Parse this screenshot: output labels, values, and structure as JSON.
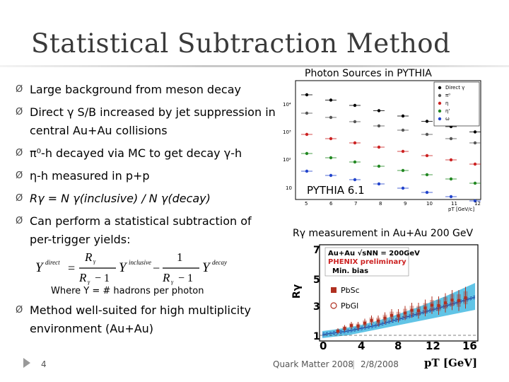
{
  "slide": {
    "title": "Statistical Subtraction Method",
    "bullets": [
      {
        "text": "Large background from meson decay"
      },
      {
        "text": "Direct γ S/B increased by jet suppression in central Au+Au collisions"
      },
      {
        "text": "π⁰-h decayed via MC to get decay γ-h"
      },
      {
        "text": "η-h measured in p+p"
      },
      {
        "text": "Rγ = N γ(inclusive) / N γ(decay)"
      },
      {
        "text": "Can perform a statistical subtraction of per-trigger yields:"
      },
      {
        "text": "Method well-suited for high multiplicity environment (Au+Au)"
      }
    ],
    "bullet_marker": "Ø",
    "formula": {
      "lhs": "Y",
      "lhs_sup": "direct",
      "eq": "=",
      "frac1_num": "R",
      "frac1_den": "R",
      "frac1_den_tail": "− 1",
      "term1_sup": "inclusive",
      "minus": "−",
      "frac2_num": "1",
      "frac2_den": "R",
      "frac2_den_tail": "− 1",
      "term2_sup": "decay",
      "gamma": "γ"
    },
    "where_text": "Where Y = # hadrons per photon",
    "footer": {
      "page_number": "4",
      "conference": "Quark Matter 2008",
      "separator": "|",
      "date": "2/8/2008"
    }
  },
  "plot_pythia": {
    "title": "Photon Sources in PYTHIA",
    "label": "PYTHIA 6.1",
    "y_ticks": [
      "10⁴",
      "10³",
      "10²",
      "10"
    ],
    "x_ticks": [
      "5",
      "6",
      "7",
      "8",
      "9",
      "10",
      "11",
      "12"
    ],
    "x_axis_label": "pT [GeV/c]",
    "legend": [
      "Direct γ",
      "π⁰",
      "η",
      "η'",
      "ω"
    ],
    "series_colors": [
      "#000000",
      "#555555",
      "#cc2222",
      "#228822",
      "#2244cc"
    ]
  },
  "plot_rgamma": {
    "title": "Rγ measurement in Au+Au 200 GeV",
    "y_axis_label": "Rγ",
    "x_axis_label": "pT [GeV]",
    "y_ticks": [
      "7",
      "5",
      "3",
      "1"
    ],
    "x_ticks": [
      "0",
      "4",
      "8",
      "12",
      "16"
    ],
    "legend_box": [
      "Au+Au √sNN = 200GeV",
      "PHENIX preliminary",
      "Min. bias"
    ],
    "legend_series": [
      "PbSc",
      "PbGl"
    ],
    "colors": {
      "band": "#39b5e0",
      "line": "#1a3fa0",
      "points": "#b03020",
      "header": "#cc2222"
    }
  }
}
